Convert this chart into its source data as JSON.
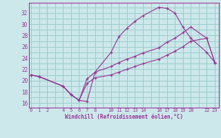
{
  "xlabel": "Windchill (Refroidissement éolien,°C)",
  "bg_color": "#cce8ea",
  "grid_color": "#99cccc",
  "line_color": "#993399",
  "xlim": [
    -0.3,
    23.5
  ],
  "ylim": [
    15.2,
    33.8
  ],
  "xticks": [
    0,
    1,
    2,
    4,
    5,
    6,
    7,
    8,
    10,
    11,
    12,
    13,
    14,
    16,
    17,
    18,
    19,
    20,
    22,
    23
  ],
  "yticks": [
    16,
    18,
    20,
    22,
    24,
    26,
    28,
    30,
    32
  ],
  "line1_x": [
    0,
    1,
    4,
    5,
    6,
    7,
    8,
    10,
    11,
    12,
    13,
    14,
    16,
    17,
    18,
    19,
    20,
    22,
    23
  ],
  "line1_y": [
    21.0,
    20.7,
    19.0,
    17.5,
    16.5,
    16.3,
    21.5,
    25.0,
    27.8,
    29.3,
    30.5,
    31.5,
    33.0,
    32.8,
    32.0,
    29.5,
    27.5,
    25.0,
    23.2
  ],
  "line2_x": [
    0,
    1,
    4,
    5,
    6,
    7,
    8,
    10,
    11,
    12,
    13,
    14,
    16,
    17,
    18,
    19,
    20,
    22,
    23
  ],
  "line2_y": [
    21.0,
    20.7,
    19.0,
    17.5,
    16.5,
    20.3,
    21.5,
    22.5,
    23.2,
    23.8,
    24.3,
    24.9,
    25.8,
    26.8,
    27.5,
    28.5,
    29.5,
    27.5,
    23.2
  ],
  "line3_x": [
    0,
    1,
    4,
    5,
    6,
    7,
    8,
    10,
    11,
    12,
    13,
    14,
    16,
    17,
    18,
    19,
    20,
    22,
    23
  ],
  "line3_y": [
    21.0,
    20.7,
    19.0,
    17.5,
    16.5,
    19.5,
    20.5,
    21.0,
    21.5,
    22.0,
    22.5,
    23.0,
    23.8,
    24.5,
    25.2,
    26.0,
    27.0,
    27.5,
    23.2
  ]
}
